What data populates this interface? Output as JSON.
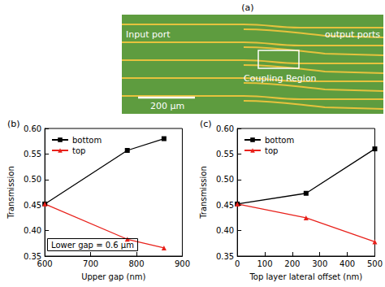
{
  "photo": {
    "panel_label": "(a)",
    "labels": [
      "Input port",
      "output ports",
      "Coupling Region"
    ],
    "scale_bar": "200 μm"
  },
  "chart_data": [
    {
      "panel_label": "(b)",
      "type": "line",
      "x_label": "Upper gap (nm)",
      "y_label": "Transmission",
      "annotation": "Lower gap = 0.6 μm",
      "xlim": [
        600,
        900
      ],
      "xticks": [
        600,
        700,
        800,
        900
      ],
      "ylim": [
        0.35,
        0.6
      ],
      "yticks": [
        0.35,
        {
          "value": 0.4,
          "label": "0.40"
        },
        0.45,
        {
          "value": 0.5,
          "label": "0.50"
        },
        0.55,
        {
          "value": 0.6,
          "label": "0.60"
        }
      ],
      "grid": false,
      "legend": "upper left",
      "x": [
        600,
        780,
        860
      ],
      "series": [
        {
          "name": "bottom",
          "color": "#000000",
          "marker": "square",
          "values": [
            0.452,
            0.557,
            0.58
          ]
        },
        {
          "name": "top",
          "color": "#e8211b",
          "marker": "triangle",
          "values": [
            0.452,
            0.383,
            0.366
          ]
        }
      ]
    },
    {
      "panel_label": "(c)",
      "type": "line",
      "x_label": "Top layer lateral offset (nm)",
      "y_label": "Transmission",
      "xlim": [
        0,
        500
      ],
      "xticks": [
        0,
        100,
        200,
        300,
        400,
        500
      ],
      "ylim": [
        0.35,
        0.6
      ],
      "yticks": [
        0.35,
        {
          "value": 0.4,
          "label": "0.40"
        },
        0.45,
        {
          "value": 0.5,
          "label": "0.50"
        },
        0.55,
        {
          "value": 0.6,
          "label": "0.60"
        }
      ],
      "grid": false,
      "legend": "upper left",
      "x": [
        0,
        250,
        500
      ],
      "series": [
        {
          "name": "bottom",
          "color": "#000000",
          "marker": "square",
          "values": [
            0.452,
            0.473,
            0.56
          ]
        },
        {
          "name": "top",
          "color": "#e8211b",
          "marker": "triangle",
          "values": [
            0.452,
            0.425,
            0.378
          ]
        }
      ]
    }
  ]
}
